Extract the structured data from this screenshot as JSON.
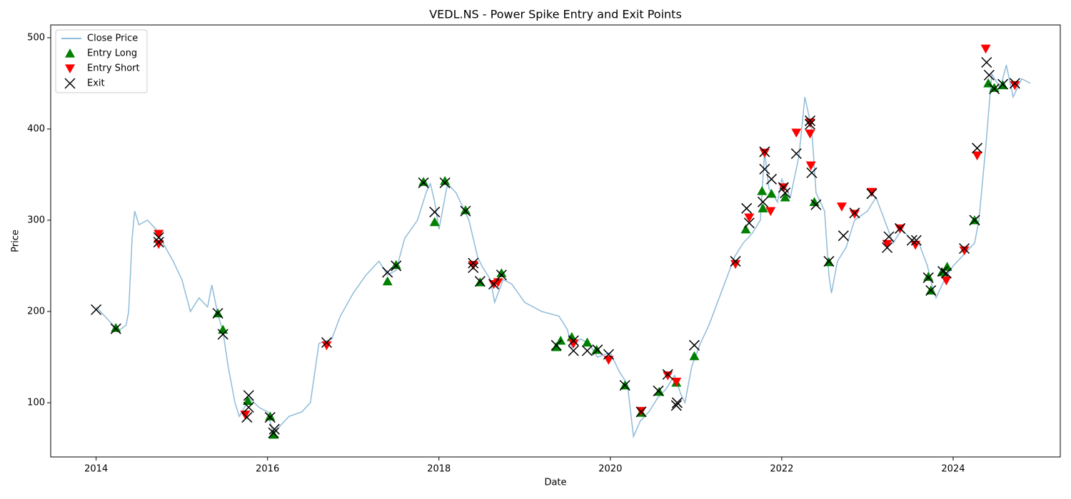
{
  "chart_data": {
    "type": "line",
    "title": "VEDL.NS - Power Spike Entry and Exit Points",
    "x_label": "Date",
    "y_label": "Price",
    "xlim": [
      2013.47,
      2025.25
    ],
    "xticks": [
      2014,
      2016,
      2018,
      2020,
      2022,
      2024
    ],
    "ylim": [
      40.6,
      514
    ],
    "yticks": [
      100,
      200,
      300,
      400,
      500
    ],
    "legend": "upper left",
    "series": [
      {
        "name": "Close Price",
        "color": "#1f77b4",
        "alpha": 0.5,
        "marker": "line",
        "x": [
          2014.0,
          2014.1,
          2014.2,
          2014.25,
          2014.35,
          2014.38,
          2014.42,
          2014.45,
          2014.5,
          2014.6,
          2014.7,
          2014.75,
          2014.9,
          2015.0,
          2015.1,
          2015.2,
          2015.3,
          2015.35,
          2015.42,
          2015.48,
          2015.54,
          2015.62,
          2015.67,
          2015.79,
          2015.9,
          2016.0,
          2016.07,
          2016.15,
          2016.25,
          2016.4,
          2016.5,
          2016.6,
          2016.75,
          2016.85,
          2017.0,
          2017.15,
          2017.3,
          2017.4,
          2017.5,
          2017.6,
          2017.75,
          2017.85,
          2017.9,
          2017.95,
          2018.0,
          2018.1,
          2018.2,
          2018.3,
          2018.35,
          2018.45,
          2018.5,
          2018.6,
          2018.65,
          2018.75,
          2018.85,
          2019.0,
          2019.2,
          2019.4,
          2019.5,
          2019.55,
          2019.65,
          2019.75,
          2019.85,
          2020.0,
          2020.1,
          2020.2,
          2020.27,
          2020.35,
          2020.45,
          2020.55,
          2020.65,
          2020.75,
          2020.82,
          2020.87,
          2020.95,
          2021.05,
          2021.15,
          2021.25,
          2021.35,
          2021.45,
          2021.55,
          2021.65,
          2021.75,
          2021.8,
          2021.85,
          2021.95,
          2022.0,
          2022.1,
          2022.2,
          2022.27,
          2022.35,
          2022.4,
          2022.5,
          2022.55,
          2022.58,
          2022.65,
          2022.75,
          2022.85,
          2023.0,
          2023.1,
          2023.2,
          2023.3,
          2023.4,
          2023.5,
          2023.6,
          2023.7,
          2023.75,
          2023.8,
          2023.9,
          2024.0,
          2024.15,
          2024.25,
          2024.3,
          2024.38,
          2024.45,
          2024.55,
          2024.62,
          2024.7,
          2024.8,
          2024.9
        ],
        "values": [
          205,
          195,
          185,
          178,
          185,
          200,
          280,
          310,
          295,
          300,
          290,
          280,
          255,
          235,
          200,
          215,
          205,
          229,
          197,
          178,
          140,
          100,
          85,
          105,
          95,
          90,
          65,
          75,
          85,
          90,
          100,
          165,
          170,
          195,
          220,
          240,
          255,
          240,
          245,
          280,
          300,
          330,
          340,
          320,
          290,
          340,
          330,
          310,
          300,
          260,
          250,
          235,
          210,
          235,
          230,
          210,
          200,
          195,
          180,
          160,
          170,
          165,
          150,
          155,
          135,
          120,
          63,
          80,
          90,
          105,
          115,
          130,
          110,
          100,
          140,
          165,
          185,
          210,
          235,
          260,
          275,
          285,
          300,
          375,
          335,
          320,
          345,
          325,
          370,
          435,
          400,
          330,
          310,
          240,
          220,
          255,
          270,
          300,
          310,
          325,
          300,
          275,
          290,
          280,
          275,
          250,
          230,
          215,
          235,
          250,
          265,
          275,
          300,
          380,
          460,
          445,
          470,
          435,
          455,
          450
        ]
      },
      {
        "name": "Entry Long",
        "color": "green",
        "marker": "^",
        "x": [
          2014.23,
          2015.42,
          2015.48,
          2015.77,
          2016.03,
          2016.07,
          2017.4,
          2017.5,
          2017.82,
          2017.95,
          2018.07,
          2018.31,
          2018.48,
          2018.73,
          2019.37,
          2019.42,
          2019.55,
          2019.73,
          2019.84,
          2020.17,
          2020.36,
          2020.57,
          2020.77,
          2020.98,
          2021.58,
          2021.77,
          2021.78,
          2021.88,
          2022.04,
          2022.38,
          2022.55,
          2023.71,
          2023.74,
          2023.87,
          2023.93,
          2024.25,
          2024.41,
          2024.48,
          2024.58
        ],
        "values": [
          182,
          198,
          180,
          102,
          85,
          65,
          233,
          251,
          342,
          298,
          343,
          311,
          232,
          242,
          161,
          168,
          172,
          166,
          158,
          119,
          89,
          112,
          122,
          151,
          290,
          332,
          313,
          329,
          325,
          320,
          254,
          238,
          223,
          243,
          249,
          300,
          450,
          445,
          448
        ]
      },
      {
        "name": "Entry Short",
        "color": "red",
        "marker": "v",
        "x": [
          2014.73,
          2014.73,
          2015.74,
          2016.69,
          2018.4,
          2018.64,
          2018.69,
          2019.57,
          2019.98,
          2020.36,
          2020.67,
          2020.77,
          2021.46,
          2021.62,
          2021.8,
          2021.87,
          2022.02,
          2022.17,
          2022.33,
          2022.33,
          2022.34,
          2022.7,
          2022.85,
          2023.05,
          2023.23,
          2023.38,
          2023.56,
          2023.92,
          2024.13,
          2024.28,
          2024.38,
          2024.72
        ],
        "values": [
          285,
          274,
          87,
          163,
          251,
          230,
          232,
          165,
          147,
          91,
          130,
          123,
          252,
          303,
          374,
          310,
          336,
          396,
          407,
          395,
          360,
          315,
          307,
          331,
          274,
          291,
          273,
          234,
          267,
          371,
          488,
          448
        ]
      },
      {
        "name": "Exit",
        "color": "black",
        "marker": "x",
        "x": [
          2014.0,
          2014.23,
          2014.73,
          2014.73,
          2015.42,
          2015.48,
          2015.76,
          2015.78,
          2015.78,
          2016.03,
          2016.07,
          2016.08,
          2016.69,
          2017.4,
          2017.5,
          2017.82,
          2017.95,
          2018.07,
          2018.31,
          2018.4,
          2018.4,
          2018.48,
          2018.64,
          2018.73,
          2019.37,
          2019.57,
          2019.57,
          2019.73,
          2019.85,
          2019.98,
          2020.17,
          2020.36,
          2020.56,
          2020.67,
          2020.77,
          2020.78,
          2020.98,
          2021.46,
          2021.59,
          2021.62,
          2021.78,
          2021.8,
          2021.8,
          2021.88,
          2022.02,
          2022.04,
          2022.17,
          2022.33,
          2022.33,
          2022.35,
          2022.4,
          2022.55,
          2022.72,
          2022.85,
          2023.05,
          2023.23,
          2023.25,
          2023.38,
          2023.52,
          2023.57,
          2023.71,
          2023.74,
          2023.88,
          2023.92,
          2024.13,
          2024.25,
          2024.28,
          2024.39,
          2024.42,
          2024.48,
          2024.58,
          2024.72
        ],
        "values": [
          202,
          181,
          281,
          276,
          198,
          175,
          84,
          95,
          108,
          84,
          67,
          71,
          166,
          243,
          250,
          341,
          309,
          341,
          310,
          253,
          248,
          233,
          230,
          240,
          163,
          157,
          168,
          157,
          158,
          153,
          119,
          90,
          113,
          131,
          97,
          100,
          163,
          255,
          313,
          297,
          320,
          375,
          356,
          345,
          336,
          330,
          373,
          405,
          409,
          352,
          317,
          255,
          283,
          308,
          329,
          270,
          282,
          291,
          278,
          278,
          237,
          223,
          244,
          242,
          269,
          300,
          379,
          473,
          459,
          444,
          449,
          450
        ]
      }
    ]
  }
}
